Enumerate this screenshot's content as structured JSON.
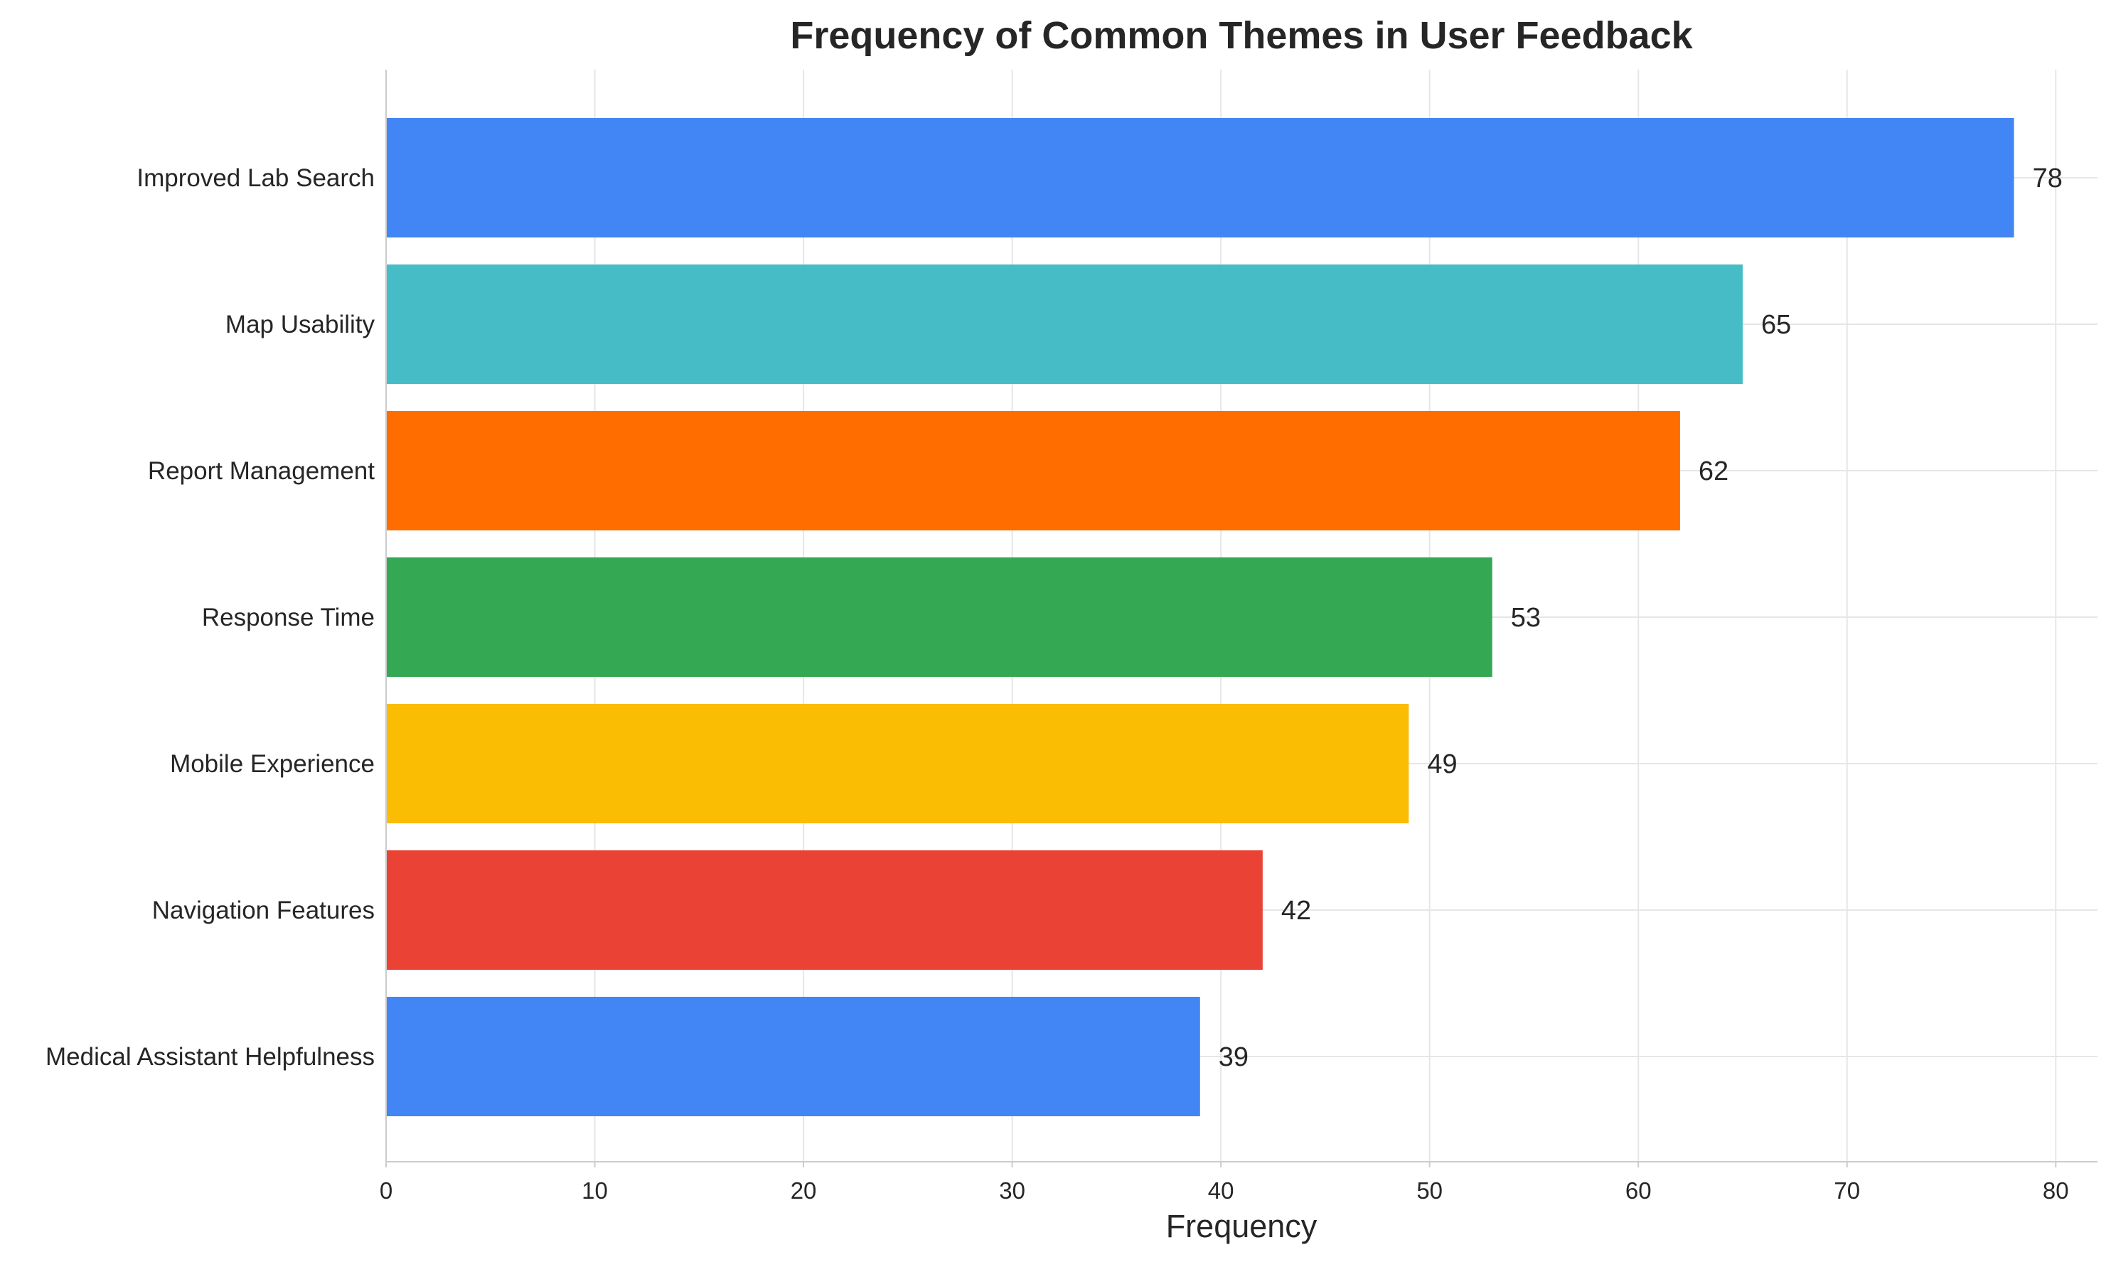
{
  "chart_data": {
    "type": "bar",
    "orientation": "horizontal",
    "title": "Frequency of Common Themes in User Feedback",
    "xlabel": "Frequency",
    "ylabel": "",
    "categories": [
      "Improved Lab Search",
      "Map Usability",
      "Report Management",
      "Response Time",
      "Mobile Experience",
      "Navigation Features",
      "Medical Assistant Helpfulness"
    ],
    "values": [
      78,
      65,
      62,
      53,
      49,
      42,
      39
    ],
    "data_labels": [
      "78",
      "65",
      "62",
      "53",
      "49",
      "42",
      "39"
    ],
    "colors": [
      "#4285F4",
      "#46BDC6",
      "#FF6D01",
      "#34A853",
      "#FBBC04",
      "#EA4335",
      "#4285F4"
    ],
    "xlim": [
      0,
      82
    ],
    "xticks": [
      0,
      10,
      20,
      30,
      40,
      50,
      60,
      70,
      80
    ],
    "xtick_labels": [
      "0",
      "10",
      "20",
      "30",
      "40",
      "50",
      "60",
      "70",
      "80"
    ],
    "grid": true,
    "legend": "none"
  }
}
